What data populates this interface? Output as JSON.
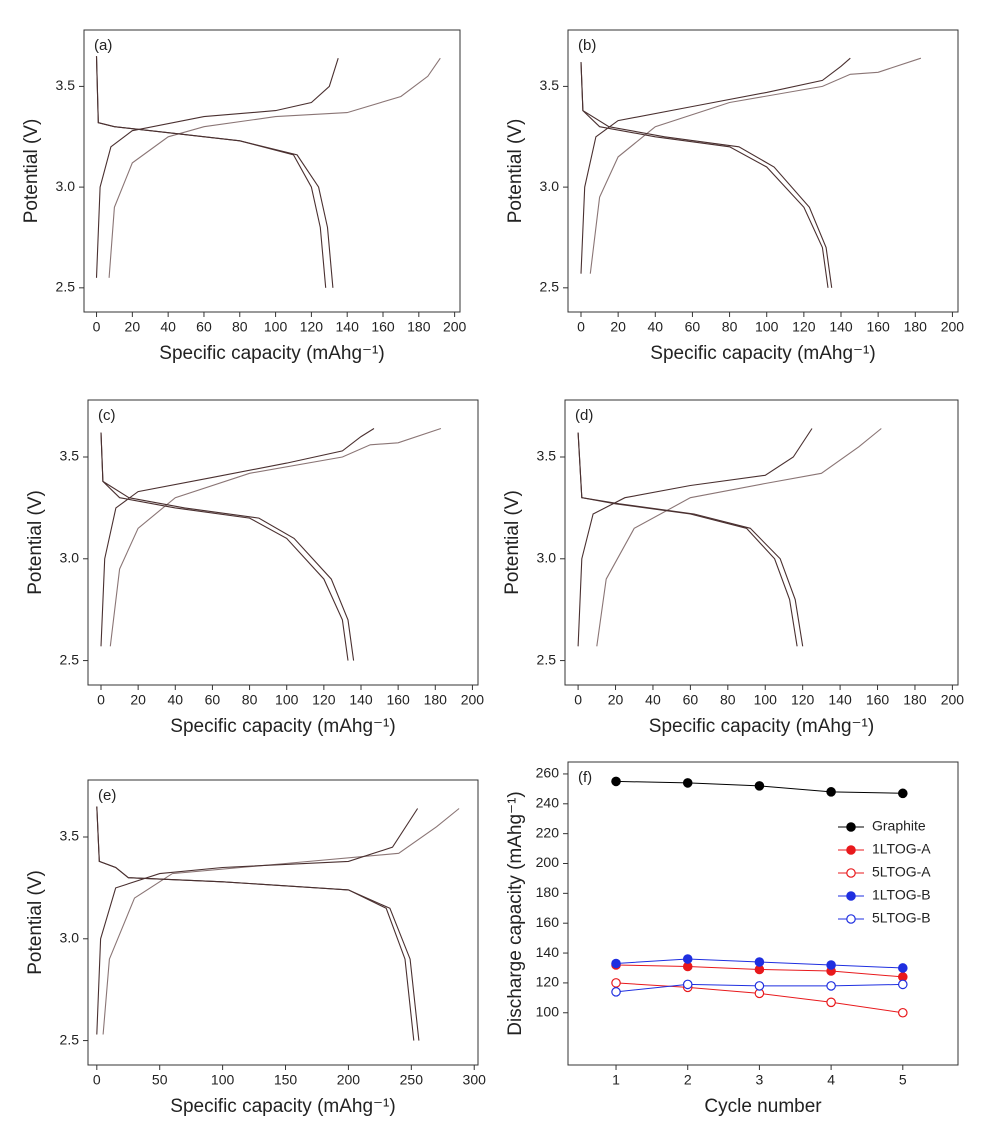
{
  "chart_data": [
    {
      "type": "line",
      "panel_label": "(a)",
      "x_label": "Specific capacity (mAhg⁻¹)",
      "y_label": "Potential (V)",
      "xlim": [
        -7,
        203
      ],
      "ylim": [
        2.38,
        3.78
      ],
      "xticks": [
        0,
        20,
        40,
        60,
        80,
        100,
        120,
        140,
        160,
        180,
        200
      ],
      "yticks": [
        2.5,
        {
          "value": 3,
          "label": "3.0"
        },
        3.5
      ],
      "series": [
        {
          "color": "#8a7575",
          "x": [
            7,
            10,
            20,
            40,
            60,
            100,
            140,
            170,
            185,
            192
          ],
          "values": [
            2.55,
            2.9,
            3.12,
            3.25,
            3.3,
            3.35,
            3.37,
            3.45,
            3.55,
            3.64
          ]
        },
        {
          "color": "#4a3030",
          "x": [
            0,
            2,
            8,
            20,
            60,
            100,
            120,
            130,
            135
          ],
          "values": [
            2.55,
            3.0,
            3.2,
            3.28,
            3.35,
            3.38,
            3.42,
            3.5,
            3.64
          ]
        },
        {
          "color": "#4a3030",
          "x": [
            0,
            1,
            10,
            40,
            80,
            110,
            120,
            125,
            128
          ],
          "values": [
            3.65,
            3.32,
            3.3,
            3.27,
            3.23,
            3.16,
            3.0,
            2.8,
            2.5
          ]
        },
        {
          "color": "#4a3030",
          "x": [
            0,
            1,
            10,
            40,
            80,
            112,
            124,
            129,
            132
          ],
          "values": [
            3.65,
            3.32,
            3.3,
            3.27,
            3.23,
            3.16,
            3.0,
            2.8,
            2.5
          ]
        }
      ]
    },
    {
      "type": "line",
      "panel_label": "(b)",
      "x_label": "Specific capacity (mAhg⁻¹)",
      "y_label": "Potential (V)",
      "xlim": [
        -7,
        203
      ],
      "ylim": [
        2.38,
        3.78
      ],
      "xticks": [
        0,
        20,
        40,
        60,
        80,
        100,
        120,
        140,
        160,
        180,
        200
      ],
      "yticks": [
        2.5,
        {
          "value": 3,
          "label": "3.0"
        },
        3.5
      ],
      "series": [
        {
          "color": "#8a7575",
          "x": [
            5,
            10,
            20,
            40,
            80,
            130,
            145,
            160,
            183
          ],
          "values": [
            2.57,
            2.95,
            3.15,
            3.3,
            3.42,
            3.5,
            3.56,
            3.57,
            3.64
          ]
        },
        {
          "color": "#4a3030",
          "x": [
            0,
            2,
            8,
            20,
            60,
            100,
            130,
            140,
            145
          ],
          "values": [
            2.57,
            3.0,
            3.25,
            3.33,
            3.4,
            3.47,
            3.53,
            3.6,
            3.64
          ]
        },
        {
          "color": "#4a3030",
          "x": [
            0,
            1,
            10,
            40,
            80,
            100,
            120,
            130,
            133
          ],
          "values": [
            3.62,
            3.38,
            3.3,
            3.25,
            3.2,
            3.1,
            2.9,
            2.7,
            2.5
          ]
        },
        {
          "color": "#4a3030",
          "x": [
            0,
            1,
            15,
            45,
            85,
            104,
            123,
            132,
            135
          ],
          "values": [
            3.62,
            3.38,
            3.3,
            3.25,
            3.2,
            3.1,
            2.9,
            2.7,
            2.5
          ]
        }
      ]
    },
    {
      "type": "line",
      "panel_label": "(c)",
      "x_label": "Specific capacity (mAhg⁻¹)",
      "y_label": "Potential (V)",
      "xlim": [
        -7,
        203
      ],
      "ylim": [
        2.38,
        3.78
      ],
      "xticks": [
        0,
        20,
        40,
        60,
        80,
        100,
        120,
        140,
        160,
        180,
        200
      ],
      "yticks": [
        2.5,
        {
          "value": 3,
          "label": "3.0"
        },
        3.5
      ],
      "series": [
        {
          "color": "#8a7575",
          "x": [
            5,
            10,
            20,
            40,
            80,
            130,
            145,
            160,
            183
          ],
          "values": [
            2.57,
            2.95,
            3.15,
            3.3,
            3.42,
            3.5,
            3.56,
            3.57,
            3.64
          ]
        },
        {
          "color": "#4a3030",
          "x": [
            0,
            2,
            8,
            20,
            60,
            100,
            130,
            140,
            147
          ],
          "values": [
            2.57,
            3.0,
            3.25,
            3.33,
            3.4,
            3.47,
            3.53,
            3.6,
            3.64
          ]
        },
        {
          "color": "#4a3030",
          "x": [
            0,
            1,
            10,
            40,
            80,
            100,
            120,
            130,
            133
          ],
          "values": [
            3.62,
            3.38,
            3.3,
            3.25,
            3.2,
            3.1,
            2.9,
            2.7,
            2.5
          ]
        },
        {
          "color": "#4a3030",
          "x": [
            0,
            1,
            15,
            45,
            85,
            104,
            124,
            133,
            136
          ],
          "values": [
            3.62,
            3.38,
            3.3,
            3.25,
            3.2,
            3.1,
            2.9,
            2.7,
            2.5
          ]
        }
      ]
    },
    {
      "type": "line",
      "panel_label": "(d)",
      "x_label": "Specific capacity (mAhg⁻¹)",
      "y_label": "Potential (V)",
      "xlim": [
        -7,
        203
      ],
      "ylim": [
        2.38,
        3.78
      ],
      "xticks": [
        0,
        20,
        40,
        60,
        80,
        100,
        120,
        140,
        160,
        180,
        200
      ],
      "yticks": [
        2.5,
        {
          "value": 3,
          "label": "3.0"
        },
        3.5
      ],
      "series": [
        {
          "color": "#8a7575",
          "x": [
            10,
            15,
            30,
            60,
            100,
            130,
            150,
            162
          ],
          "values": [
            2.57,
            2.9,
            3.15,
            3.3,
            3.37,
            3.42,
            3.55,
            3.64
          ]
        },
        {
          "color": "#4a3030",
          "x": [
            0,
            2,
            8,
            25,
            60,
            100,
            115,
            125
          ],
          "values": [
            2.57,
            3.0,
            3.22,
            3.3,
            3.36,
            3.41,
            3.5,
            3.64
          ]
        },
        {
          "color": "#4a3030",
          "x": [
            0,
            2,
            20,
            60,
            90,
            105,
            113,
            117
          ],
          "values": [
            3.62,
            3.3,
            3.27,
            3.22,
            3.15,
            3.0,
            2.8,
            2.57
          ]
        },
        {
          "color": "#4a3030",
          "x": [
            0,
            2,
            22,
            62,
            92,
            108,
            116,
            120
          ],
          "values": [
            3.62,
            3.3,
            3.27,
            3.22,
            3.15,
            3.0,
            2.8,
            2.57
          ]
        }
      ]
    },
    {
      "type": "line",
      "panel_label": "(e)",
      "x_label": "Specific capacity (mAhg⁻¹)",
      "y_label": "Potential (V)",
      "xlim": [
        -7,
        303
      ],
      "ylim": [
        2.38,
        3.78
      ],
      "xticks": [
        0,
        50,
        100,
        150,
        200,
        250,
        300
      ],
      "yticks": [
        2.5,
        {
          "value": 3,
          "label": "3.0"
        },
        3.5
      ],
      "series": [
        {
          "color": "#8a7575",
          "x": [
            5,
            10,
            30,
            60,
            150,
            240,
            270,
            288
          ],
          "values": [
            2.53,
            2.9,
            3.2,
            3.32,
            3.37,
            3.42,
            3.55,
            3.64
          ]
        },
        {
          "color": "#4a3030",
          "x": [
            0,
            3,
            15,
            50,
            100,
            200,
            235,
            255
          ],
          "values": [
            2.53,
            3.0,
            3.25,
            3.32,
            3.35,
            3.38,
            3.45,
            3.64
          ]
        },
        {
          "color": "#4a3030",
          "x": [
            0,
            2,
            15,
            25,
            100,
            200,
            230,
            245,
            252
          ],
          "values": [
            3.65,
            3.38,
            3.35,
            3.3,
            3.28,
            3.24,
            3.15,
            2.9,
            2.5
          ]
        },
        {
          "color": "#4a3030",
          "x": [
            0,
            2,
            15,
            25,
            100,
            200,
            233,
            249,
            256
          ],
          "values": [
            3.65,
            3.38,
            3.35,
            3.3,
            3.28,
            3.24,
            3.15,
            2.9,
            2.5
          ]
        }
      ]
    },
    {
      "type": "line",
      "panel_label": "(f)",
      "x_label": "Cycle number",
      "y_label": "Discharge capacity (mAhg⁻¹)",
      "xlim": [
        0.33,
        5.77
      ],
      "ylim": [
        65,
        268
      ],
      "xticks": [
        1,
        2,
        3,
        4,
        5
      ],
      "yticks": [
        100,
        120,
        140,
        160,
        180,
        200,
        220,
        240,
        260
      ],
      "legend": "upper right",
      "x": [
        1,
        2,
        3,
        4,
        5
      ],
      "series": [
        {
          "name": "Graphite",
          "color": "#000000",
          "marker": "filled",
          "values": [
            255,
            254,
            252,
            248,
            247
          ]
        },
        {
          "name": "1LTOG-A",
          "color": "#e8191c",
          "marker": "filled",
          "values": [
            132,
            131,
            129,
            128,
            124
          ]
        },
        {
          "name": "5LTOG-A",
          "color": "#e8191c",
          "marker": "open",
          "values": [
            120,
            117,
            113,
            107,
            100
          ]
        },
        {
          "name": "1LTOG-B",
          "color": "#1f2fe0",
          "marker": "filled",
          "values": [
            133,
            136,
            134,
            132,
            130
          ]
        },
        {
          "name": "5LTOG-B",
          "color": "#1f2fe0",
          "marker": "open",
          "values": [
            114,
            119,
            118,
            118,
            119
          ]
        }
      ]
    }
  ]
}
